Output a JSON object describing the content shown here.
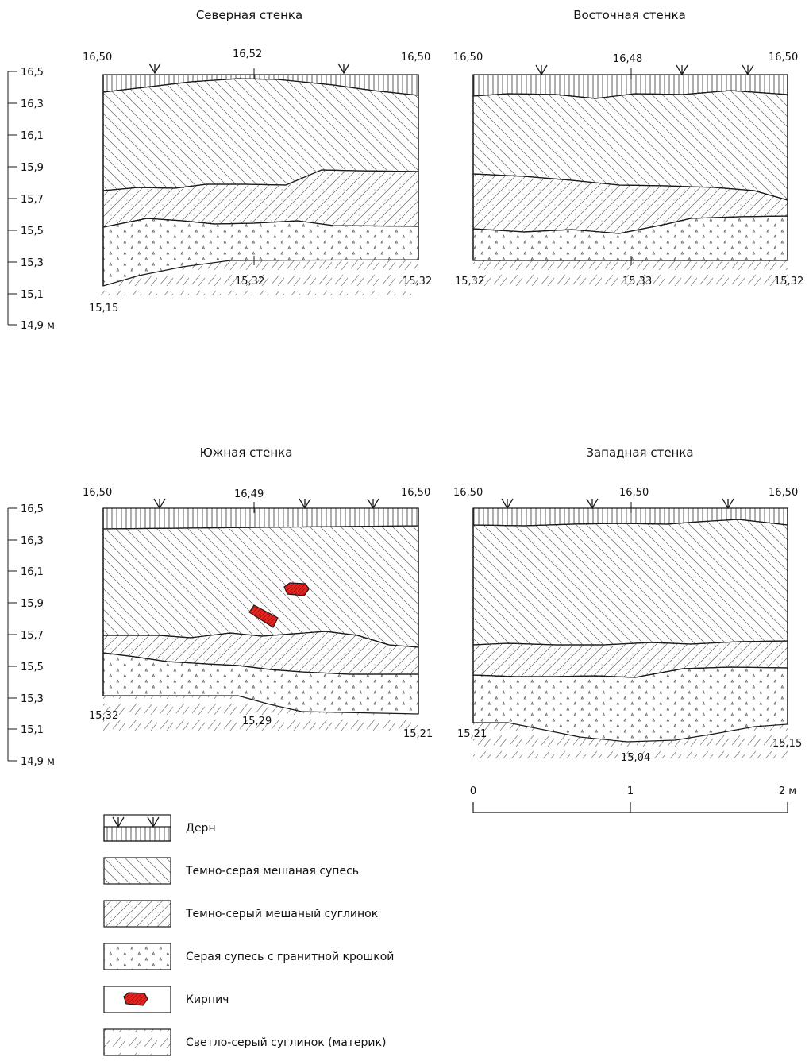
{
  "walls": [
    {
      "id": "north",
      "title": "Северная стенка",
      "top_left": "16,50",
      "top_mid": "16,52",
      "top_right": "16,50",
      "bottom_labels": [
        "15,15",
        "15,32",
        "15,32"
      ],
      "bricks": 0
    },
    {
      "id": "east",
      "title": "Восточная стенка",
      "top_left": "16,50",
      "top_mid": "16,48",
      "top_right": "16,50",
      "bottom_labels": [
        "15,32",
        "15,33",
        "15,32"
      ],
      "bricks": 0
    },
    {
      "id": "south",
      "title": "Южная стенка",
      "top_left": "16,50",
      "top_mid": "16,49",
      "top_right": "16,50",
      "bottom_labels": [
        "15,32",
        "15,29",
        "15,21"
      ],
      "bricks": 2
    },
    {
      "id": "west",
      "title": "Западная стенка",
      "top_left": "16,50",
      "top_mid": "16,50",
      "top_right": "16,50",
      "bottom_labels": [
        "15,21",
        "15,04",
        "15,15"
      ],
      "bricks": 0
    }
  ],
  "scale_ticks": [
    "16,5",
    "16,3",
    "16,1",
    "15,9",
    "15,7",
    "15,5",
    "15,3",
    "15,1",
    "14,9 м"
  ],
  "bar_scale": {
    "labels": [
      "0",
      "1",
      "2 м"
    ]
  },
  "legend": [
    {
      "key": "sod",
      "label": "Дерн"
    },
    {
      "key": "sandy",
      "label": "Темно-серая мешаная супесь"
    },
    {
      "key": "loam",
      "label": "Темно-серый мешаный суглинок"
    },
    {
      "key": "gravel",
      "label": "Серая супесь с гранитной крошкой"
    },
    {
      "key": "brick",
      "label": "Кирпич"
    },
    {
      "key": "native",
      "label": "Светло-серый суглинок (материк)"
    }
  ],
  "colors": {
    "line": "#1a1a1a",
    "hatch": "#555555",
    "brick": "#e8231f"
  }
}
